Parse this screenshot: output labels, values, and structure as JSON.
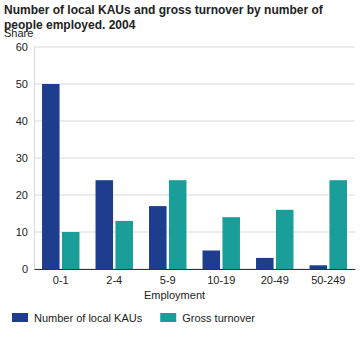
{
  "chart_data": {
    "type": "bar",
    "title": "Number of local KAUs and gross turnover by number of people employed. 2004",
    "y_label": "Share",
    "x_label": "Employment",
    "categories": [
      "0-1",
      "2-4",
      "5-9",
      "10-19",
      "20-49",
      "50-249"
    ],
    "series": [
      {
        "name": "Number of local KAUs",
        "color": "#1f3d8f",
        "values": [
          50,
          24,
          17,
          5,
          3,
          1
        ]
      },
      {
        "name": "Gross turnover",
        "color": "#1a9e9a",
        "values": [
          10,
          13,
          24,
          14,
          16,
          24
        ]
      }
    ],
    "ylim": [
      0,
      60
    ],
    "yticks": [
      0,
      10,
      20,
      30,
      40,
      50,
      60
    ],
    "grid": true,
    "legend": "bottom"
  }
}
